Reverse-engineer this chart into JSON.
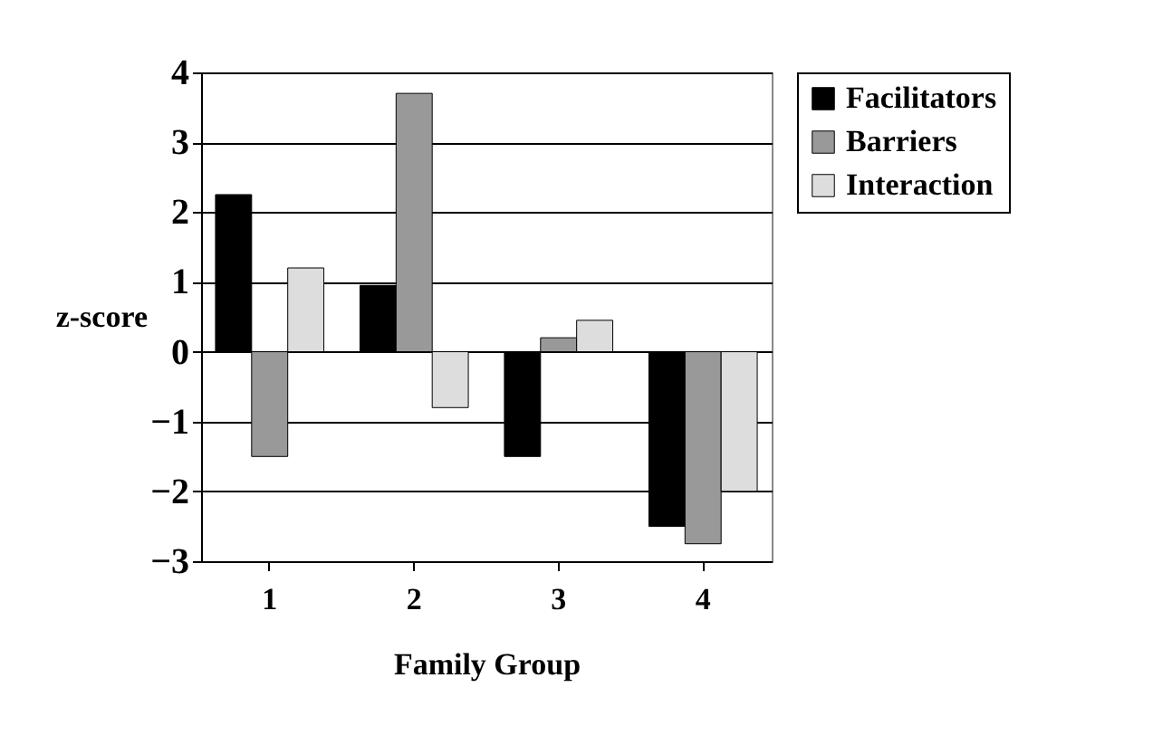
{
  "chart_data": {
    "type": "bar",
    "xlabel": "Family Group",
    "ylabel": "z-score",
    "categories": [
      "1",
      "2",
      "3",
      "4"
    ],
    "series": [
      {
        "name": "Facilitators",
        "color": "#000000",
        "values": [
          2.25,
          0.95,
          -1.5,
          -2.5
        ]
      },
      {
        "name": "Barriers",
        "color": "#999999",
        "values": [
          -1.5,
          3.7,
          0.2,
          -2.75
        ]
      },
      {
        "name": "Interaction",
        "color": "#dddddd",
        "values": [
          1.2,
          -0.8,
          0.45,
          -2.0
        ]
      }
    ],
    "ylim": [
      -3,
      4
    ],
    "yticks": [
      -3,
      -2,
      -1,
      0,
      1,
      2,
      3,
      4
    ],
    "grid": "y",
    "legend": "right"
  }
}
